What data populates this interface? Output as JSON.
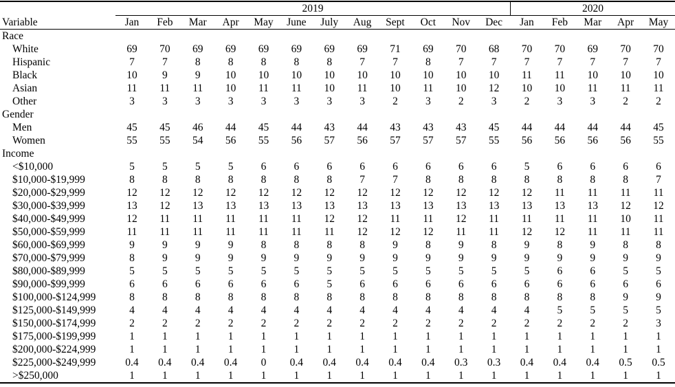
{
  "table": {
    "variable_header": "Variable",
    "year_groups": [
      {
        "label": "2019",
        "span": "12"
      },
      {
        "label": "2020",
        "span": "5"
      }
    ],
    "months": [
      "Jan",
      "Feb",
      "Mar",
      "Apr",
      "May",
      "June",
      "July",
      "Aug",
      "Sept",
      "Oct",
      "Nov",
      "Dec",
      "Jan",
      "Feb",
      "Mar",
      "Apr",
      "May"
    ],
    "sections": [
      {
        "label": "Race",
        "rows": [
          {
            "label": "White",
            "values": [
              69,
              70,
              69,
              69,
              69,
              69,
              69,
              69,
              71,
              69,
              70,
              68,
              70,
              70,
              69,
              70,
              70
            ]
          },
          {
            "label": "Hispanic",
            "values": [
              7,
              7,
              8,
              8,
              8,
              8,
              8,
              7,
              7,
              8,
              7,
              7,
              7,
              7,
              7,
              7,
              7
            ]
          },
          {
            "label": "Black",
            "values": [
              10,
              9,
              9,
              10,
              10,
              10,
              10,
              10,
              10,
              10,
              10,
              10,
              11,
              11,
              10,
              10,
              10
            ]
          },
          {
            "label": "Asian",
            "values": [
              11,
              11,
              11,
              10,
              11,
              11,
              10,
              11,
              10,
              11,
              10,
              12,
              10,
              10,
              11,
              11,
              11
            ]
          },
          {
            "label": "Other",
            "values": [
              3,
              3,
              3,
              3,
              3,
              3,
              3,
              3,
              2,
              3,
              2,
              3,
              2,
              3,
              3,
              2,
              2
            ]
          }
        ]
      },
      {
        "label": "Gender",
        "rows": [
          {
            "label": "Men",
            "values": [
              45,
              45,
              46,
              44,
              45,
              44,
              43,
              44,
              43,
              43,
              43,
              45,
              44,
              44,
              44,
              44,
              45
            ]
          },
          {
            "label": "Women",
            "values": [
              55,
              55,
              54,
              56,
              55,
              56,
              57,
              56,
              57,
              57,
              57,
              55,
              56,
              56,
              56,
              56,
              55
            ]
          }
        ]
      },
      {
        "label": "Income",
        "rows": [
          {
            "label": "<$10,000",
            "values": [
              5,
              5,
              5,
              5,
              6,
              6,
              6,
              6,
              6,
              6,
              6,
              6,
              5,
              6,
              6,
              6,
              6
            ]
          },
          {
            "label": "$10,000-$19,999",
            "values": [
              8,
              8,
              8,
              8,
              8,
              8,
              8,
              7,
              7,
              8,
              8,
              8,
              8,
              8,
              8,
              8,
              7
            ]
          },
          {
            "label": "$20,000-$29,999",
            "values": [
              12,
              12,
              12,
              12,
              12,
              12,
              12,
              12,
              12,
              12,
              12,
              12,
              12,
              11,
              11,
              11,
              11
            ]
          },
          {
            "label": "$30,000-$39,999",
            "values": [
              13,
              12,
              13,
              13,
              13,
              13,
              13,
              13,
              13,
              13,
              13,
              13,
              13,
              13,
              13,
              12,
              12
            ]
          },
          {
            "label": "$40,000-$49,999",
            "values": [
              12,
              11,
              11,
              11,
              11,
              11,
              12,
              12,
              11,
              11,
              12,
              11,
              11,
              11,
              11,
              10,
              11
            ]
          },
          {
            "label": "$50,000-$59,999",
            "values": [
              11,
              11,
              11,
              11,
              11,
              11,
              11,
              12,
              12,
              12,
              11,
              11,
              12,
              12,
              11,
              11,
              11
            ]
          },
          {
            "label": "$60,000-$69,999",
            "values": [
              9,
              9,
              9,
              9,
              8,
              8,
              8,
              8,
              9,
              8,
              9,
              8,
              9,
              8,
              9,
              8,
              8
            ]
          },
          {
            "label": "$70,000-$79,999",
            "values": [
              8,
              9,
              9,
              9,
              9,
              9,
              9,
              9,
              9,
              9,
              9,
              9,
              9,
              9,
              9,
              9,
              9
            ]
          },
          {
            "label": "$80,000-$89,999",
            "values": [
              5,
              5,
              5,
              5,
              5,
              5,
              5,
              5,
              5,
              5,
              5,
              5,
              5,
              6,
              6,
              5,
              5
            ]
          },
          {
            "label": "$90,000-$99,999",
            "values": [
              6,
              6,
              6,
              6,
              6,
              6,
              5,
              6,
              6,
              6,
              6,
              6,
              6,
              6,
              6,
              6,
              6
            ]
          },
          {
            "label": "$100,000-$124,999",
            "values": [
              8,
              8,
              8,
              8,
              8,
              8,
              8,
              8,
              8,
              8,
              8,
              8,
              8,
              8,
              8,
              9,
              9
            ]
          },
          {
            "label": "$125,000-$149,999",
            "values": [
              4,
              4,
              4,
              4,
              4,
              4,
              4,
              4,
              4,
              4,
              4,
              4,
              4,
              5,
              5,
              5,
              5
            ]
          },
          {
            "label": "$150,000-$174,999",
            "values": [
              2,
              2,
              2,
              2,
              2,
              2,
              2,
              2,
              2,
              2,
              2,
              2,
              2,
              2,
              2,
              2,
              3
            ]
          },
          {
            "label": "$175,000-$199,999",
            "values": [
              1,
              1,
              1,
              1,
              1,
              1,
              1,
              1,
              1,
              1,
              1,
              1,
              1,
              1,
              1,
              1,
              1
            ]
          },
          {
            "label": "$200,000-$224,999",
            "values": [
              1,
              1,
              1,
              1,
              1,
              1,
              1,
              1,
              1,
              1,
              1,
              1,
              1,
              1,
              1,
              1,
              1
            ]
          },
          {
            "label": "$225,000-$249,999",
            "values": [
              "0.4",
              "0.4",
              "0.4",
              "0.4",
              "0",
              "0.4",
              "0.4",
              "0.4",
              "0.4",
              "0.4",
              "0.3",
              "0.3",
              "0.4",
              "0.4",
              "0.4",
              "0.5",
              "0.5"
            ]
          },
          {
            "label": ">$250,000",
            "values": [
              1,
              1,
              1,
              1,
              1,
              1,
              1,
              1,
              1,
              1,
              1,
              1,
              1,
              1,
              1,
              1,
              1
            ]
          }
        ]
      }
    ]
  }
}
